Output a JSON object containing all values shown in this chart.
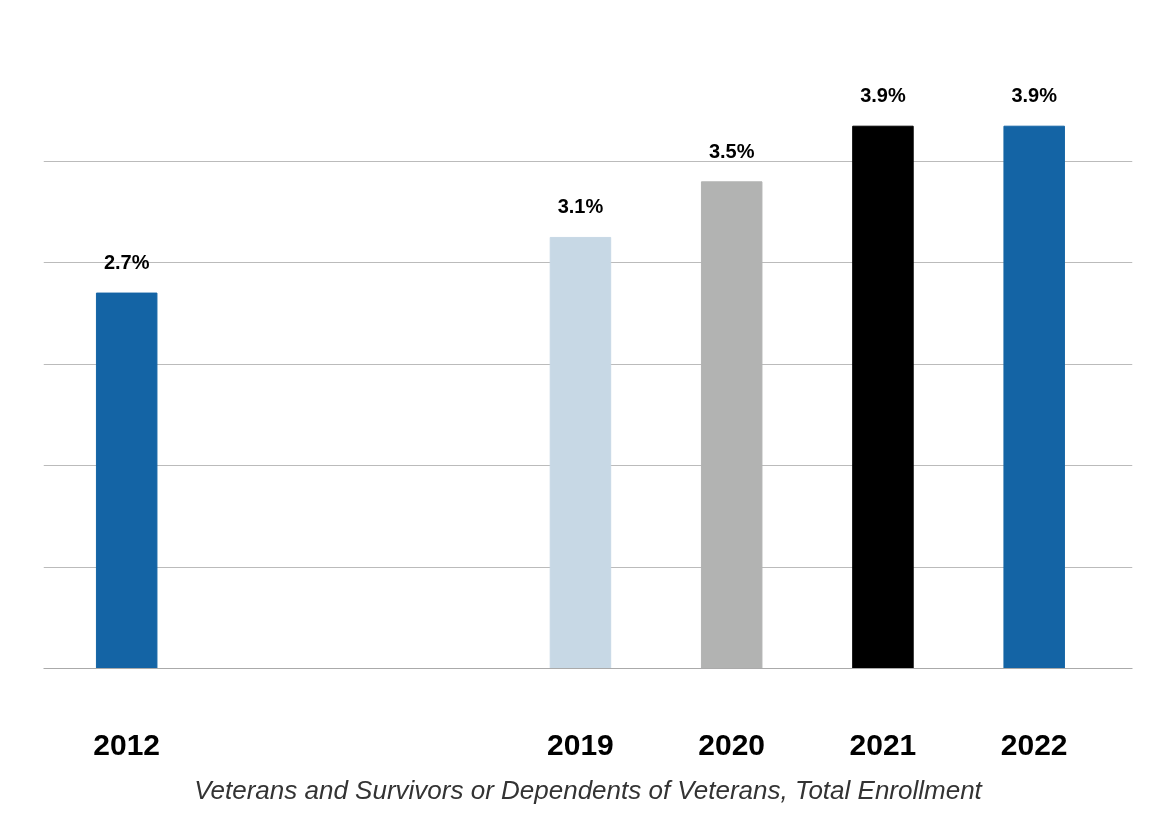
{
  "chart_data": {
    "type": "bar",
    "categories": [
      "2012",
      null,
      null,
      "2019",
      "2020",
      "2021",
      "2022"
    ],
    "values": [
      2.7,
      null,
      null,
      3.1,
      3.5,
      3.9,
      3.9
    ],
    "colors": [
      "#1464a5",
      "#1464a5",
      "#1464a5",
      "#c7d8e5",
      "#b2b3b2",
      "#000000",
      "#1464a5"
    ],
    "value_labels": [
      "2.7%",
      null,
      null,
      "3.1%",
      "3.5%",
      "3.9%",
      "3.9%"
    ],
    "grid": "y",
    "tick_labels": "x",
    "annotations": [
      "Veterans and Survivors or Dependents of Veterans, Total Enrollment"
    ]
  }
}
